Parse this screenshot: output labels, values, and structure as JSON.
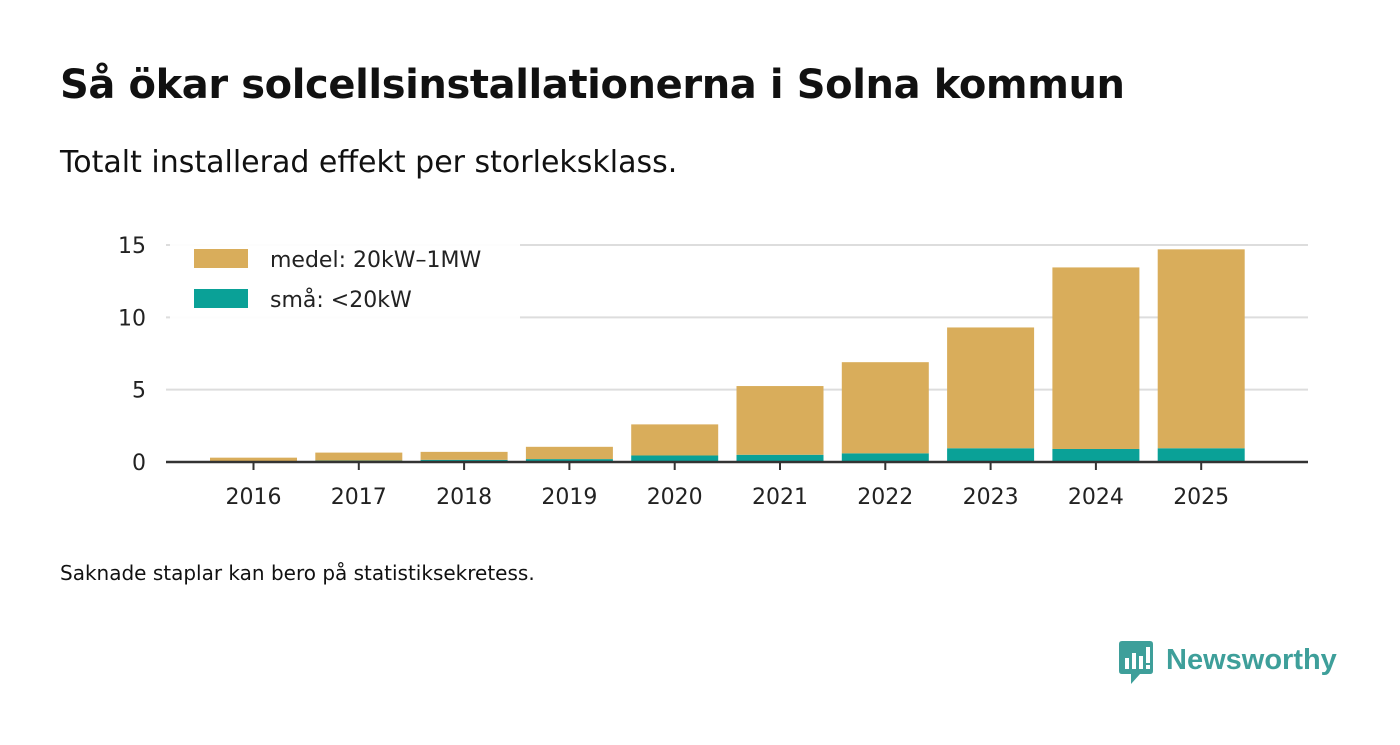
{
  "title": "Så ökar solcellsinstallationerna i Solna kommun",
  "subtitle": "Totalt installerad effekt per storleksklass.",
  "footnote": "Saknade staplar kan bero på statistiksekretess.",
  "brand": {
    "name": "Newsworthy",
    "icon": "newsworthy-logo-icon",
    "color": "#3e9f9a"
  },
  "chart_data": {
    "type": "bar",
    "stacked": true,
    "title": "Så ökar solcellsinstallationerna i Solna kommun",
    "subtitle": "Totalt installerad effekt per storleksklass.",
    "xlabel": "",
    "ylabel": "",
    "categories": [
      "2016",
      "2017",
      "2018",
      "2019",
      "2020",
      "2021",
      "2022",
      "2023",
      "2024",
      "2025"
    ],
    "series": [
      {
        "name": "små: <20kW",
        "color": "#0aa197",
        "values": [
          0.05,
          0.1,
          0.15,
          0.2,
          0.45,
          0.5,
          0.6,
          0.95,
          0.9,
          0.95
        ]
      },
      {
        "name": "medel: 20kW–1MW",
        "color": "#d9ad5b",
        "values": [
          0.25,
          0.55,
          0.55,
          0.85,
          2.15,
          4.75,
          6.3,
          8.35,
          12.55,
          13.75
        ]
      }
    ],
    "legend_order": [
      "medel: 20kW–1MW",
      "små: <20kW"
    ],
    "ylim": [
      0,
      15
    ],
    "yticks": [
      0,
      5,
      10,
      15
    ],
    "grid": true,
    "legend_position": "top-left"
  }
}
